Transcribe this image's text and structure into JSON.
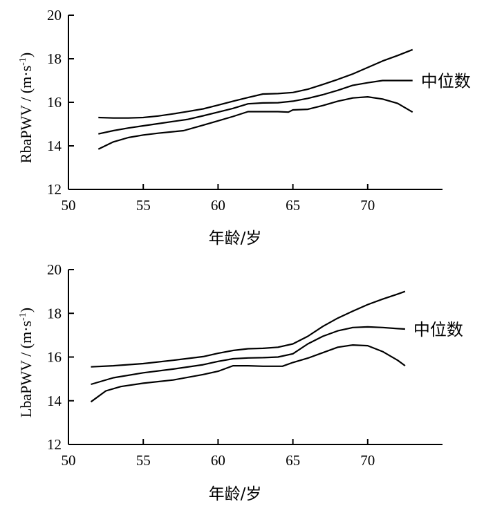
{
  "chart_data": [
    {
      "type": "line",
      "xlabel": "年龄/岁",
      "ylabel_main": "RbaPWV / (m·s",
      "ylabel_sup": "-1",
      "ylabel_close": ")",
      "xlim": [
        50,
        75
      ],
      "ylim": [
        12,
        20
      ],
      "xticks": [
        50,
        55,
        60,
        65,
        70
      ],
      "yticks": [
        12,
        14,
        16,
        18,
        20
      ],
      "annotation": "中位数",
      "series": [
        {
          "x": [
            52,
            53,
            54,
            55,
            56,
            57,
            58,
            59,
            60,
            61,
            62,
            63,
            64,
            65,
            66,
            67,
            68,
            69,
            70,
            71,
            72,
            73
          ],
          "y": [
            15.3,
            15.28,
            15.28,
            15.3,
            15.37,
            15.47,
            15.58,
            15.7,
            15.87,
            16.05,
            16.22,
            16.38,
            16.4,
            16.45,
            16.6,
            16.82,
            17.05,
            17.3,
            17.6,
            17.9,
            18.15,
            18.42
          ]
        },
        {
          "x": [
            52,
            53,
            54,
            55,
            56,
            57,
            58,
            59,
            60,
            61,
            62,
            63,
            64,
            65,
            66,
            67,
            68,
            69,
            70,
            71,
            72,
            73
          ],
          "y": [
            14.55,
            14.7,
            14.82,
            14.92,
            15.02,
            15.12,
            15.22,
            15.38,
            15.55,
            15.72,
            15.93,
            15.97,
            15.98,
            16.05,
            16.18,
            16.35,
            16.55,
            16.78,
            16.9,
            17.0,
            17.0,
            17.0
          ]
        },
        {
          "x": [
            52,
            53,
            54,
            55,
            56,
            57,
            57.7,
            59,
            60,
            61,
            62,
            63,
            64,
            64.7,
            65,
            66,
            67,
            68,
            69,
            70,
            71,
            72,
            73
          ],
          "y": [
            13.85,
            14.18,
            14.38,
            14.5,
            14.58,
            14.65,
            14.7,
            14.95,
            15.15,
            15.35,
            15.57,
            15.57,
            15.57,
            15.55,
            15.65,
            15.68,
            15.85,
            16.05,
            16.2,
            16.25,
            16.15,
            15.95,
            15.55
          ]
        }
      ]
    },
    {
      "type": "line",
      "xlabel": "年龄/岁",
      "ylabel_main": "LbaPWV / (m·s",
      "ylabel_sup": "-1",
      "ylabel_close": ")",
      "xlim": [
        50,
        75
      ],
      "ylim": [
        12,
        20
      ],
      "xticks": [
        50,
        55,
        60,
        65,
        70
      ],
      "yticks": [
        12,
        14,
        16,
        18,
        20
      ],
      "annotation": "中位数",
      "series": [
        {
          "x": [
            51.5,
            53,
            55,
            57,
            59,
            60,
            61,
            62,
            63,
            64,
            65,
            66,
            67,
            68,
            69,
            70,
            71,
            72,
            72.5
          ],
          "y": [
            15.55,
            15.6,
            15.7,
            15.85,
            16.02,
            16.17,
            16.3,
            16.38,
            16.4,
            16.45,
            16.6,
            16.95,
            17.4,
            17.78,
            18.1,
            18.4,
            18.65,
            18.88,
            19.0
          ]
        },
        {
          "x": [
            51.5,
            53,
            55,
            57,
            59,
            60,
            61,
            62,
            63,
            64,
            65,
            66,
            67,
            68,
            69,
            70,
            71,
            72,
            72.5
          ],
          "y": [
            14.75,
            15.05,
            15.28,
            15.45,
            15.65,
            15.8,
            15.92,
            15.96,
            15.97,
            16.0,
            16.15,
            16.6,
            16.95,
            17.2,
            17.35,
            17.38,
            17.35,
            17.3,
            17.28
          ]
        },
        {
          "x": [
            51.5,
            52.5,
            53.5,
            55,
            57,
            59,
            60,
            61,
            62,
            63,
            64.3,
            65,
            66,
            67,
            68,
            69,
            70,
            71,
            72,
            72.5
          ],
          "y": [
            13.95,
            14.45,
            14.65,
            14.8,
            14.95,
            15.2,
            15.35,
            15.6,
            15.6,
            15.58,
            15.58,
            15.75,
            15.95,
            16.2,
            16.45,
            16.55,
            16.52,
            16.25,
            15.85,
            15.6
          ]
        }
      ]
    }
  ]
}
